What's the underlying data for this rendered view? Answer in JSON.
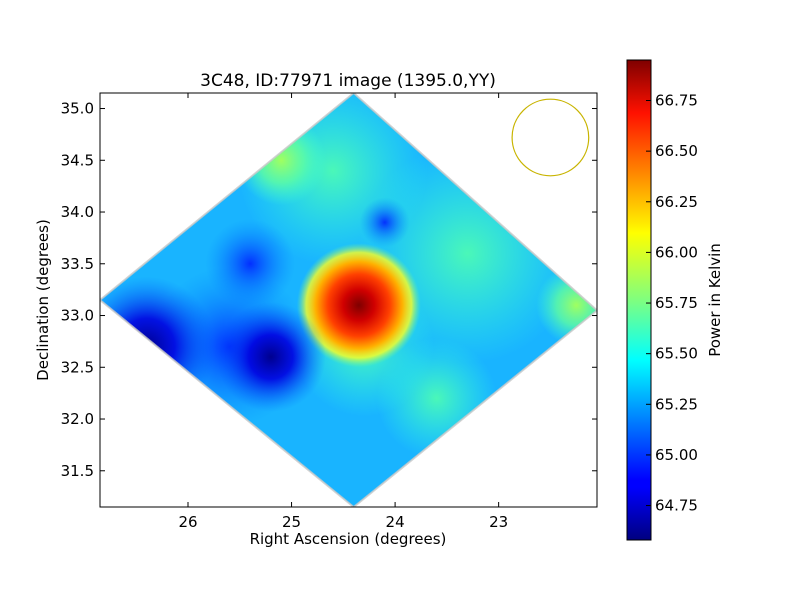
{
  "chart_data": {
    "type": "heatmap",
    "title": "3C48, ID:77971 image (1395.0,YY)",
    "xlabel": "Right Ascension (degrees)",
    "ylabel": "Declination (degrees)",
    "xlim": [
      26.85,
      22.05
    ],
    "ylim": [
      31.15,
      35.15
    ],
    "x_inverted": true,
    "xticks": [
      26,
      25,
      24,
      23
    ],
    "yticks": [
      31.5,
      32.0,
      32.5,
      33.0,
      33.5,
      34.0,
      34.5,
      35.0
    ],
    "xtick_labels": [
      "26",
      "25",
      "24",
      "23"
    ],
    "ytick_labels": [
      "31.5",
      "32.0",
      "32.5",
      "33.0",
      "33.5",
      "34.0",
      "34.5",
      "35.0"
    ],
    "colormap": "jet",
    "colorbar": {
      "label": "Power in Kelvin",
      "range": [
        64.58,
        66.95
      ],
      "ticks": [
        64.75,
        65.0,
        65.25,
        65.5,
        65.75,
        66.0,
        66.25,
        66.5,
        66.75
      ],
      "tick_labels": [
        "64.75",
        "65.00",
        "65.25",
        "65.50",
        "65.75",
        "66.00",
        "66.25",
        "66.50",
        "66.75"
      ]
    },
    "image_footprint": [
      {
        "ra": 24.4,
        "dec": 35.15
      },
      {
        "ra": 22.05,
        "dec": 33.05
      },
      {
        "ra": 24.4,
        "dec": 31.15
      },
      {
        "ra": 26.85,
        "dec": 33.15
      }
    ],
    "background_level": 65.35,
    "features": [
      {
        "ra": 24.35,
        "dec": 33.1,
        "value": 66.95,
        "description": "peak"
      },
      {
        "ra": 26.4,
        "dec": 32.7,
        "value": 64.6,
        "description": "low"
      },
      {
        "ra": 25.2,
        "dec": 32.6,
        "value": 64.95,
        "description": "low"
      },
      {
        "ra": 22.25,
        "dec": 33.1,
        "value": 65.7,
        "description": "high"
      },
      {
        "ra": 25.1,
        "dec": 34.5,
        "value": 65.5,
        "description": "high"
      }
    ],
    "beam_circle": {
      "ra": 22.5,
      "dec": 34.72,
      "radius_deg": 0.37,
      "color": "#c8b400"
    }
  }
}
